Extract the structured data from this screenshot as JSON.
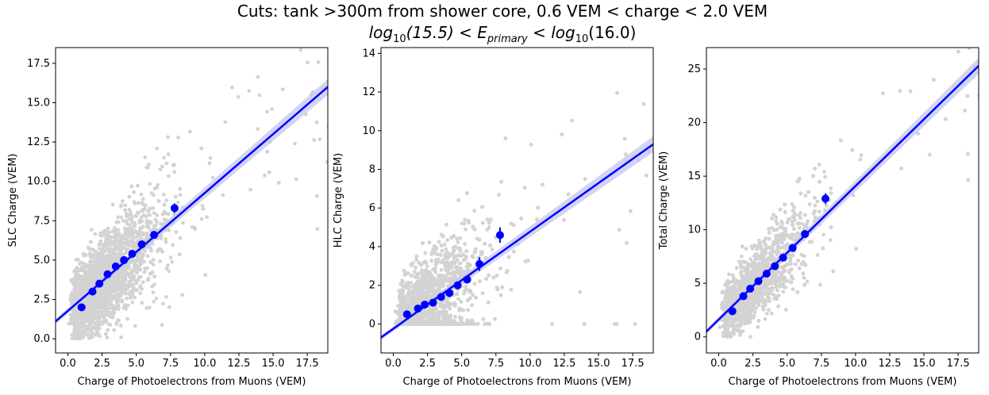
{
  "figure": {
    "title_line1": "Cuts:  tank >300m from shower core,  0.6 VEM < charge < 2.0 VEM",
    "title_line2_prefix": "log",
    "title_line2_sub1": "10",
    "title_line2_mid": "(15.5) < E",
    "title_line2_sub2": "primary",
    "title_line2_mid2": " < log",
    "title_line2_sub3": "10",
    "title_line2_suffix": "(16.0)"
  },
  "colors": {
    "scatter": "#d3d3d3",
    "points": "#0000ff",
    "fit_line": "#0000ff",
    "fit_band": "#c8c8f0"
  },
  "chart_data": [
    {
      "type": "scatter",
      "xlabel": "Charge of Photoelectrons from Muons (VEM)",
      "ylabel": "SLC Charge (VEM)",
      "xlim": [
        -0.9,
        19.0
      ],
      "ylim": [
        -0.9,
        18.5
      ],
      "xticks": [
        "0.0",
        "2.5",
        "5.0",
        "7.5",
        "10.0",
        "12.5",
        "15.0",
        "17.5"
      ],
      "yticks": [
        "0.0",
        "2.5",
        "5.0",
        "7.5",
        "10.0",
        "12.5",
        "15.0",
        "17.5"
      ],
      "binned_x": [
        1.0,
        1.8,
        2.3,
        2.9,
        3.5,
        4.1,
        4.7,
        5.4,
        6.3,
        7.8
      ],
      "binned_y": [
        2.0,
        3.0,
        3.5,
        4.1,
        4.6,
        5.0,
        5.4,
        6.0,
        6.6,
        8.3
      ],
      "binned_err": [
        0.15,
        0.12,
        0.12,
        0.12,
        0.15,
        0.15,
        0.2,
        0.2,
        0.2,
        0.3
      ],
      "fit": {
        "x": [
          -0.9,
          19.0
        ],
        "y": [
          1.1,
          16.0
        ]
      },
      "cloud": {
        "slope": 0.8,
        "intercept": 1.5,
        "noise": 1.9,
        "xmax": 12.0,
        "n": 2600
      }
    },
    {
      "type": "scatter",
      "xlabel": "Charge of Photoelectrons from Muons (VEM)",
      "ylabel": "HLC Charge (VEM)",
      "xlim": [
        -0.9,
        19.0
      ],
      "ylim": [
        -1.5,
        14.3
      ],
      "xticks": [
        "0.0",
        "2.5",
        "5.0",
        "7.5",
        "10.0",
        "12.5",
        "15.0",
        "17.5"
      ],
      "yticks": [
        "0",
        "2",
        "4",
        "6",
        "8",
        "10",
        "12",
        "14"
      ],
      "binned_x": [
        1.0,
        1.8,
        2.3,
        2.9,
        3.5,
        4.1,
        4.7,
        5.4,
        6.3,
        7.8
      ],
      "binned_y": [
        0.5,
        0.8,
        1.0,
        1.1,
        1.4,
        1.6,
        2.0,
        2.3,
        3.1,
        4.6
      ],
      "binned_err": [
        0.1,
        0.1,
        0.1,
        0.15,
        0.15,
        0.15,
        0.2,
        0.2,
        0.35,
        0.4
      ],
      "fit": {
        "x": [
          -0.9,
          19.0
        ],
        "y": [
          -0.7,
          9.3
        ]
      },
      "cloud": {
        "slope": 0.5,
        "intercept": 0.0,
        "noise": 1.6,
        "xmax": 12.0,
        "n": 2600
      }
    },
    {
      "type": "scatter",
      "xlabel": "Charge of Photoelectrons from Muons (VEM)",
      "ylabel": "Total Charge (VEM)",
      "xlim": [
        -0.9,
        19.0
      ],
      "ylim": [
        -1.5,
        27.0
      ],
      "xticks": [
        "0.0",
        "2.5",
        "5.0",
        "7.5",
        "10.0",
        "12.5",
        "15.0",
        "17.5"
      ],
      "yticks": [
        "0",
        "5",
        "10",
        "15",
        "20",
        "25"
      ],
      "binned_x": [
        1.0,
        1.8,
        2.3,
        2.9,
        3.5,
        4.1,
        4.7,
        5.4,
        6.3,
        7.8
      ],
      "binned_y": [
        2.4,
        3.8,
        4.5,
        5.2,
        5.9,
        6.6,
        7.4,
        8.3,
        9.6,
        12.9
      ],
      "binned_err": [
        0.2,
        0.2,
        0.2,
        0.2,
        0.25,
        0.25,
        0.25,
        0.3,
        0.3,
        0.5
      ],
      "fit": {
        "x": [
          -0.9,
          19.0
        ],
        "y": [
          0.5,
          25.3
        ]
      },
      "cloud": {
        "slope": 1.3,
        "intercept": 1.5,
        "noise": 2.2,
        "xmax": 12.0,
        "n": 2600
      }
    }
  ]
}
